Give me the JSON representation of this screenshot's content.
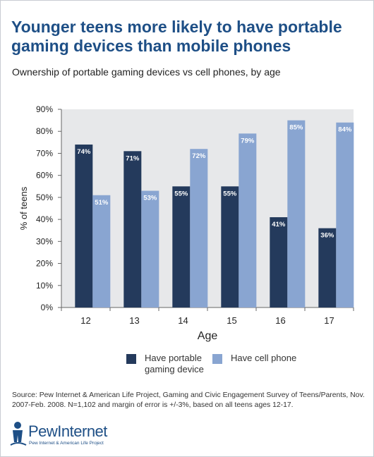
{
  "title": "Younger teens more likely to have portable gaming devices than mobile phones",
  "subtitle": "Ownership of portable gaming devices vs cell phones, by age",
  "source": "Source: Pew Internet & American Life Project, Gaming and Civic Engagement Survey of Teens/Parents, Nov. 2007-Feb. 2008. N=1,102 and margin of error is +/-3%, based on all teens ages 12-17.",
  "logo": {
    "name": "PewInternet",
    "tagline": "Pew Internet & American Life Project"
  },
  "colors": {
    "title": "#1e4f86",
    "plot_background": "#e7e8ea",
    "gaming": "#243a5c",
    "cell": "#89a5d1"
  },
  "chart_data": {
    "type": "bar",
    "categories": [
      "12",
      "13",
      "14",
      "15",
      "16",
      "17"
    ],
    "series": [
      {
        "name": "Have portable gaming device",
        "values": [
          74,
          71,
          55,
          55,
          41,
          36
        ],
        "labels": [
          "74%",
          "71%",
          "55%",
          "55%",
          "41%",
          "36%"
        ]
      },
      {
        "name": "Have cell phone",
        "values": [
          51,
          53,
          72,
          79,
          85,
          84
        ],
        "labels": [
          "51%",
          "53%",
          "72%",
          "79%",
          "85%",
          "84%"
        ]
      }
    ],
    "title": "",
    "xlabel": "Age",
    "ylabel": "% of teens",
    "ylim": [
      0,
      90
    ],
    "yticks": [
      0,
      10,
      20,
      30,
      40,
      50,
      60,
      70,
      80,
      90
    ],
    "ytick_labels": [
      "0%",
      "10%",
      "20%",
      "30%",
      "40%",
      "50%",
      "60%",
      "70%",
      "80%",
      "90%"
    ],
    "grid": false,
    "legend_position": "bottom"
  }
}
